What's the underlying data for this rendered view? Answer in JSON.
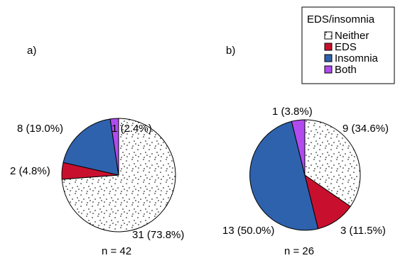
{
  "legend": {
    "title": "EDS/insomnia",
    "items": [
      {
        "label": "Neither",
        "key": "neither"
      },
      {
        "label": "EDS",
        "key": "eds"
      },
      {
        "label": "Insomnia",
        "key": "insomnia"
      },
      {
        "label": "Both",
        "key": "both"
      }
    ]
  },
  "colors": {
    "neither": "#ffffff",
    "eds": "#c8102e",
    "insomnia": "#2f62ad",
    "both": "#b14bef",
    "stroke": "#000000"
  },
  "chart_data": [
    {
      "type": "pie",
      "panel_label": "a)",
      "n_label": "n = 42",
      "slices": [
        {
          "name": "Neither",
          "value": 31,
          "label": "31 (73.8%)"
        },
        {
          "name": "EDS",
          "value": 2,
          "label": "2 (4.8%)"
        },
        {
          "name": "Insomnia",
          "value": 8,
          "label": "8 (19.0%)"
        },
        {
          "name": "Both",
          "value": 1,
          "label": "1 (2.4%)"
        }
      ]
    },
    {
      "type": "pie",
      "panel_label": "b)",
      "n_label": "n = 26",
      "slices": [
        {
          "name": "Neither",
          "value": 9,
          "label": "9 (34.6%)"
        },
        {
          "name": "EDS",
          "value": 3,
          "label": "3 (11.5%)"
        },
        {
          "name": "Insomnia",
          "value": 13,
          "label": "13 (50.0%)"
        },
        {
          "name": "Both",
          "value": 1,
          "label": "1 (3.8%)"
        }
      ]
    }
  ]
}
